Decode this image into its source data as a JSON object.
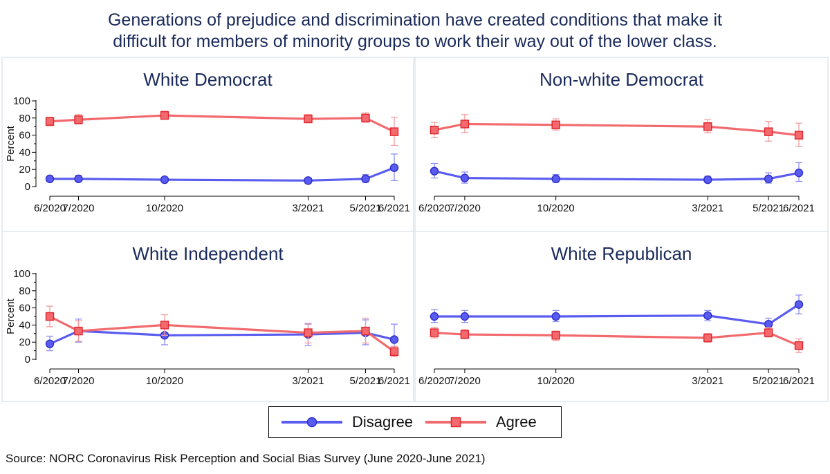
{
  "title_line1": "Generations of prejudice and discrimination have created conditions that make it",
  "title_line2": "difficult for members of minority groups to work their way out of the lower class.",
  "source": "Source: NORC Coronavirus Risk Perception and Social Bias Survey (June 2020-June 2021)",
  "legend": [
    {
      "label": "Disagree",
      "color": "#5a5cf0",
      "marker": "circle"
    },
    {
      "label": "Agree",
      "color": "#f26a6e",
      "marker": "square"
    }
  ],
  "colors": {
    "disagree": "#5a5cf0",
    "agree": "#f26a6e",
    "title": "#1a2a5a"
  },
  "chart_data": [
    {
      "type": "line",
      "title": "White Democrat",
      "ylabel": "Percent",
      "x": [
        "6/2020",
        "7/2020",
        "10/2020",
        "3/2021",
        "5/2021",
        "6/2021"
      ],
      "x_months": [
        0,
        1,
        4,
        9,
        11,
        12
      ],
      "ylim": [
        0,
        100
      ],
      "yticks": [
        0,
        20,
        40,
        60,
        80,
        100
      ],
      "series": [
        {
          "name": "Disagree",
          "values": [
            9,
            9,
            8,
            7,
            9,
            22
          ],
          "lower": [
            6,
            6,
            5,
            4,
            5,
            7
          ],
          "upper": [
            12,
            13,
            11,
            10,
            14,
            38
          ]
        },
        {
          "name": "Agree",
          "values": [
            76,
            78,
            83,
            79,
            80,
            64
          ],
          "lower": [
            71,
            73,
            79,
            75,
            75,
            48
          ],
          "upper": [
            81,
            84,
            88,
            84,
            86,
            81
          ]
        }
      ]
    },
    {
      "type": "line",
      "title": "Non-white Democrat",
      "ylabel": "",
      "x": [
        "6/2020",
        "7/2020",
        "10/2020",
        "3/2021",
        "5/2021",
        "6/2021"
      ],
      "x_months": [
        0,
        1,
        4,
        9,
        11,
        12
      ],
      "ylim": [
        0,
        100
      ],
      "yticks": [],
      "series": [
        {
          "name": "Disagree",
          "values": [
            18,
            10,
            9,
            8,
            9,
            16
          ],
          "lower": [
            10,
            4,
            5,
            5,
            4,
            6
          ],
          "upper": [
            27,
            17,
            14,
            12,
            16,
            28
          ]
        },
        {
          "name": "Agree",
          "values": [
            66,
            73,
            72,
            70,
            64,
            60
          ],
          "lower": [
            57,
            63,
            66,
            63,
            53,
            47
          ],
          "upper": [
            75,
            84,
            79,
            78,
            76,
            74
          ]
        }
      ]
    },
    {
      "type": "line",
      "title": "White Independent",
      "ylabel": "Percent",
      "x": [
        "6/2020",
        "7/2020",
        "10/2020",
        "3/2021",
        "5/2021",
        "6/2021"
      ],
      "x_months": [
        0,
        1,
        4,
        9,
        11,
        12
      ],
      "ylim": [
        0,
        100
      ],
      "yticks": [
        0,
        20,
        40,
        60,
        80,
        100
      ],
      "series": [
        {
          "name": "Disagree",
          "values": [
            18,
            33,
            28,
            29,
            31,
            23
          ],
          "lower": [
            10,
            20,
            17,
            16,
            17,
            10
          ],
          "upper": [
            27,
            47,
            40,
            41,
            46,
            41
          ]
        },
        {
          "name": "Agree",
          "values": [
            50,
            33,
            40,
            31,
            33,
            9
          ],
          "lower": [
            38,
            21,
            28,
            19,
            19,
            3
          ],
          "upper": [
            62,
            45,
            52,
            42,
            48,
            15
          ]
        }
      ]
    },
    {
      "type": "line",
      "title": "White Republican",
      "ylabel": "",
      "x": [
        "6/2020",
        "7/2020",
        "10/2020",
        "3/2021",
        "5/2021",
        "6/2021"
      ],
      "x_months": [
        0,
        1,
        4,
        9,
        11,
        12
      ],
      "ylim": [
        0,
        100
      ],
      "yticks": [],
      "series": [
        {
          "name": "Disagree",
          "values": [
            50,
            50,
            50,
            51,
            41,
            64
          ],
          "lower": [
            43,
            43,
            44,
            45,
            34,
            53
          ],
          "upper": [
            58,
            57,
            57,
            57,
            48,
            75
          ]
        },
        {
          "name": "Agree",
          "values": [
            31,
            29,
            28,
            25,
            31,
            16
          ],
          "lower": [
            25,
            24,
            22,
            20,
            26,
            8
          ],
          "upper": [
            37,
            35,
            33,
            30,
            37,
            24
          ]
        }
      ]
    }
  ]
}
